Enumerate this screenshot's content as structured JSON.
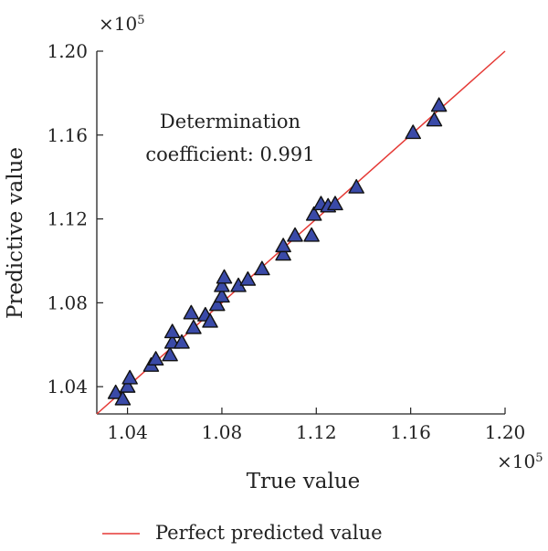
{
  "chart_data": {
    "type": "scatter",
    "xlabel": "True value",
    "ylabel": "Predictive value",
    "x_exponent_label": "×10",
    "x_exponent_power": "5",
    "y_exponent_label": "×10",
    "y_exponent_power": "5",
    "xlim": [
      1.027,
      1.2
    ],
    "ylim": [
      1.027,
      1.2
    ],
    "x_ticks": [
      "1.04",
      "1.08",
      "1.12",
      "1.16",
      "1.20"
    ],
    "y_ticks": [
      "1.04",
      "1.08",
      "1.12",
      "1.16",
      "1.20"
    ],
    "grid": false,
    "legend_position": "bottom",
    "marker_color": "#3a4aa8",
    "line_color": "#e53935",
    "annotation": {
      "line1": "Determination",
      "line2": "coefficient: 0.991"
    },
    "series": [
      {
        "name": "Perfect predicted value",
        "type": "line",
        "x": [
          1.027,
          1.2
        ],
        "y": [
          1.027,
          1.2
        ]
      },
      {
        "type": "scatter",
        "points": [
          {
            "x": 1.035,
            "y": 1.037
          },
          {
            "x": 1.038,
            "y": 1.034
          },
          {
            "x": 1.04,
            "y": 1.04
          },
          {
            "x": 1.041,
            "y": 1.044
          },
          {
            "x": 1.05,
            "y": 1.05
          },
          {
            "x": 1.052,
            "y": 1.053
          },
          {
            "x": 1.058,
            "y": 1.055
          },
          {
            "x": 1.059,
            "y": 1.061
          },
          {
            "x": 1.059,
            "y": 1.066
          },
          {
            "x": 1.063,
            "y": 1.061
          },
          {
            "x": 1.067,
            "y": 1.075
          },
          {
            "x": 1.068,
            "y": 1.068
          },
          {
            "x": 1.073,
            "y": 1.074
          },
          {
            "x": 1.075,
            "y": 1.071
          },
          {
            "x": 1.078,
            "y": 1.079
          },
          {
            "x": 1.08,
            "y": 1.083
          },
          {
            "x": 1.08,
            "y": 1.088
          },
          {
            "x": 1.081,
            "y": 1.092
          },
          {
            "x": 1.087,
            "y": 1.088
          },
          {
            "x": 1.091,
            "y": 1.091
          },
          {
            "x": 1.097,
            "y": 1.096
          },
          {
            "x": 1.106,
            "y": 1.103
          },
          {
            "x": 1.106,
            "y": 1.107
          },
          {
            "x": 1.111,
            "y": 1.112
          },
          {
            "x": 1.118,
            "y": 1.112
          },
          {
            "x": 1.119,
            "y": 1.122
          },
          {
            "x": 1.122,
            "y": 1.127
          },
          {
            "x": 1.125,
            "y": 1.126
          },
          {
            "x": 1.128,
            "y": 1.127
          },
          {
            "x": 1.137,
            "y": 1.135
          },
          {
            "x": 1.161,
            "y": 1.161
          },
          {
            "x": 1.17,
            "y": 1.167
          },
          {
            "x": 1.172,
            "y": 1.174
          }
        ]
      }
    ]
  }
}
